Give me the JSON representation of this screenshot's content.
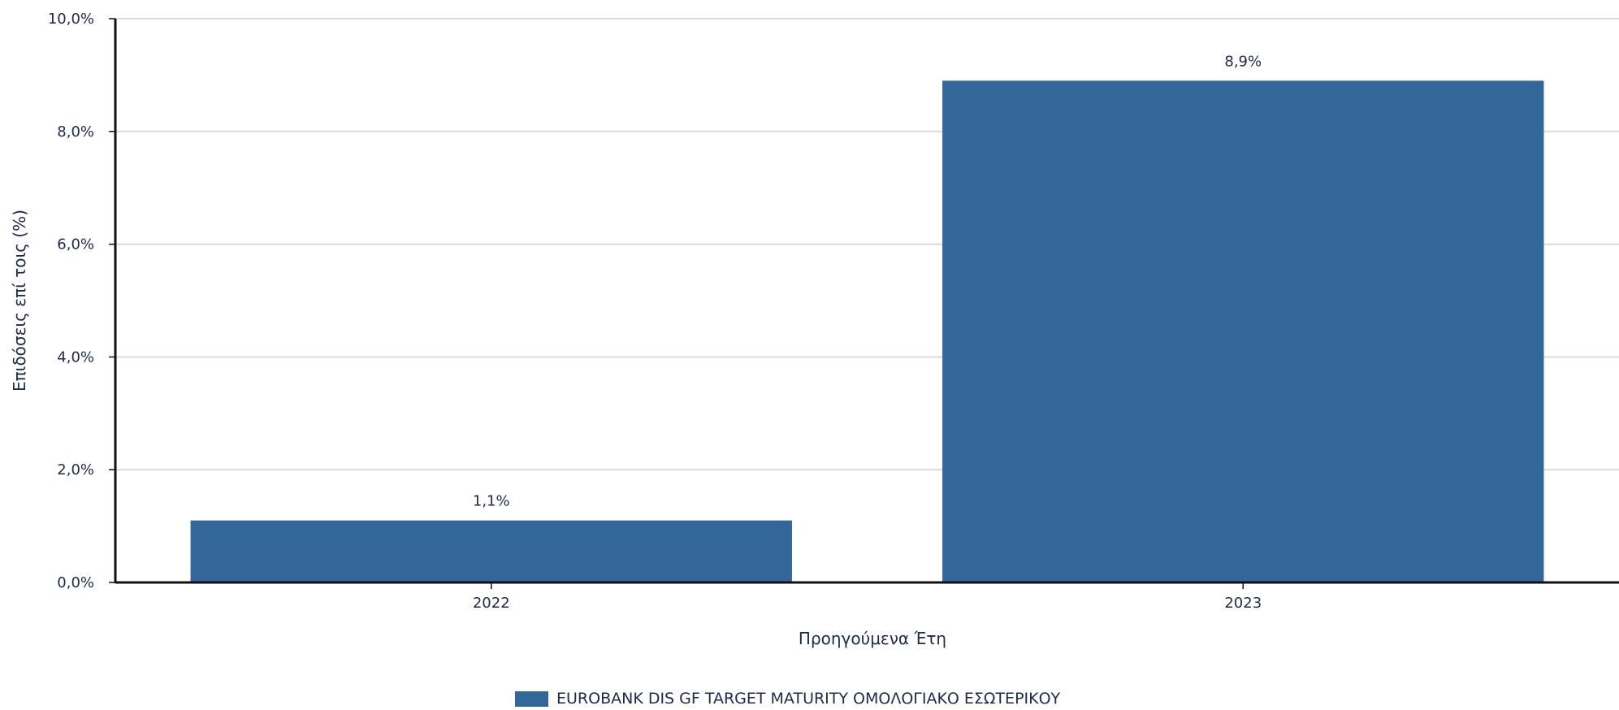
{
  "chart_data": {
    "type": "bar",
    "categories": [
      "2022",
      "2023"
    ],
    "series": [
      {
        "name": "EUROBANK DIS GF TARGET MATURITY ΟΜΟΛΟΓΙΑΚΟ ΕΣΩΤΕΡΙΚΟΥ",
        "values": [
          1.1,
          8.9
        ],
        "labels": [
          "1,1%",
          "8,9%"
        ],
        "color": "#336699"
      }
    ],
    "xlabel": "Προηγούμενα Έτη",
    "ylabel": "Επιδόσεις επί τοις (%)",
    "ylim": [
      0,
      10
    ],
    "yticks": [
      0,
      2,
      4,
      6,
      8,
      10
    ],
    "ytick_labels": [
      "0,0%",
      "2,0%",
      "4,0%",
      "6,0%",
      "8,0%",
      "10,0%"
    ],
    "grid": true,
    "legend_position": "bottom-center"
  },
  "colors": {
    "text": "#1e2a4a",
    "grid": "#d9d9d9",
    "axis": "#111111"
  }
}
